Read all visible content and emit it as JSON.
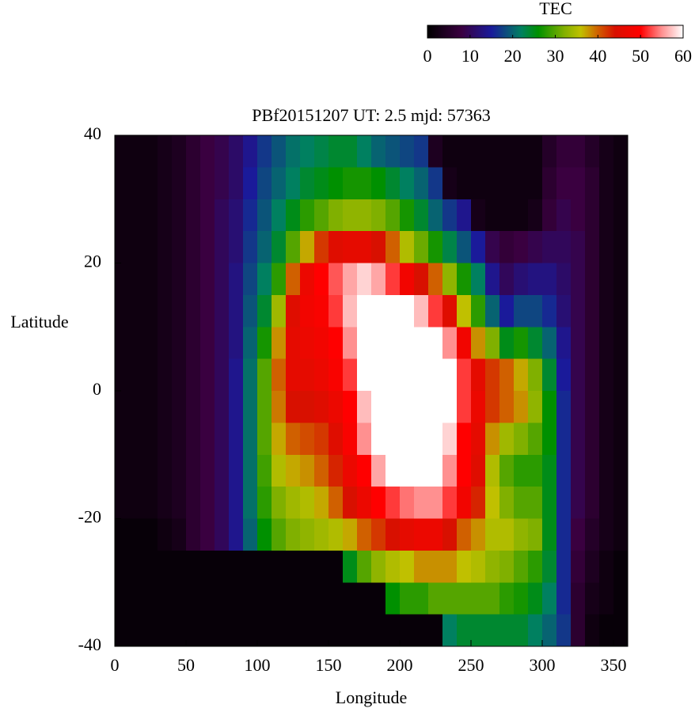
{
  "chart_data": {
    "type": "heatmap",
    "title": "PBf20151207  UT: 2.5  mjd: 57363",
    "xlabel": "Longitude",
    "ylabel": "Latitude",
    "xlim": [
      0,
      360
    ],
    "ylim": [
      -40,
      40
    ],
    "xticks": [
      0,
      50,
      100,
      150,
      200,
      250,
      300,
      350
    ],
    "yticks": [
      -40,
      -20,
      0,
      20,
      40
    ],
    "x": [
      5,
      15,
      25,
      35,
      45,
      55,
      65,
      75,
      85,
      95,
      105,
      115,
      125,
      135,
      145,
      155,
      165,
      175,
      185,
      195,
      205,
      215,
      225,
      235,
      245,
      255,
      265,
      275,
      285,
      295,
      305,
      315,
      325,
      335,
      345,
      355
    ],
    "y": [
      37.5,
      32.5,
      27.5,
      22.5,
      17.5,
      12.5,
      7.5,
      2.5,
      -2.5,
      -7.5,
      -12.5,
      -17.5,
      -22.5,
      -27.5,
      -32.5,
      -37.5
    ],
    "z": [
      [
        2,
        2,
        2,
        3,
        4,
        6,
        8,
        9,
        11,
        14,
        17,
        19,
        21,
        22,
        23,
        24,
        24,
        22,
        20,
        19,
        18,
        17,
        4,
        2,
        2,
        2,
        2,
        2,
        2,
        2,
        5,
        7,
        7,
        5,
        3,
        2
      ],
      [
        2,
        2,
        2,
        3,
        4,
        6,
        8,
        9,
        11,
        15,
        18,
        20,
        22,
        24,
        25,
        26,
        27,
        27,
        26,
        24,
        22,
        20,
        17,
        3,
        2,
        2,
        2,
        2,
        2,
        2,
        6,
        8,
        8,
        6,
        3,
        2
      ],
      [
        2,
        2,
        2,
        3,
        4,
        6,
        8,
        10,
        12,
        16,
        19,
        22,
        25,
        28,
        30,
        32,
        33,
        33,
        32,
        30,
        27,
        24,
        20,
        17,
        14,
        3,
        2,
        2,
        2,
        3,
        7,
        9,
        8,
        6,
        3,
        2
      ],
      [
        2,
        2,
        2,
        3,
        4,
        6,
        8,
        10,
        12,
        17,
        20,
        24,
        30,
        37,
        42,
        45,
        46,
        46,
        44,
        40,
        35,
        31,
        27,
        23,
        19,
        15,
        9,
        7,
        8,
        9,
        10,
        10,
        9,
        6,
        3,
        2
      ],
      [
        2,
        2,
        2,
        3,
        4,
        6,
        8,
        10,
        13,
        18,
        22,
        28,
        40,
        47,
        50,
        53,
        56,
        58,
        56,
        52,
        48,
        44,
        40,
        33,
        27,
        22,
        14,
        10,
        12,
        13,
        13,
        11,
        9,
        6,
        3,
        2
      ],
      [
        2,
        2,
        2,
        3,
        4,
        6,
        8,
        10,
        13,
        19,
        24,
        34,
        45,
        48,
        49,
        52,
        57,
        60,
        60,
        60,
        60,
        57,
        52,
        45,
        36,
        28,
        20,
        15,
        18,
        18,
        16,
        12,
        9,
        6,
        3,
        2
      ],
      [
        2,
        2,
        2,
        3,
        4,
        6,
        8,
        10,
        13,
        20,
        27,
        38,
        46,
        47,
        48,
        50,
        55,
        60,
        60,
        60,
        60,
        60,
        60,
        55,
        48,
        38,
        32,
        25,
        27,
        24,
        20,
        14,
        9,
        6,
        3,
        2
      ],
      [
        2,
        2,
        2,
        3,
        4,
        6,
        8,
        10,
        14,
        21,
        30,
        40,
        46,
        46,
        47,
        49,
        52,
        60,
        60,
        60,
        60,
        60,
        60,
        60,
        52,
        46,
        42,
        40,
        37,
        32,
        24,
        15,
        9,
        6,
        3,
        2
      ],
      [
        2,
        2,
        2,
        3,
        4,
        6,
        8,
        10,
        14,
        21,
        30,
        39,
        44,
        44,
        45,
        47,
        50,
        57,
        60,
        60,
        60,
        60,
        60,
        60,
        52,
        47,
        42,
        40,
        38,
        33,
        26,
        16,
        9,
        6,
        3,
        2
      ],
      [
        2,
        2,
        2,
        3,
        4,
        6,
        8,
        10,
        14,
        21,
        30,
        37,
        40,
        41,
        42,
        45,
        49,
        55,
        60,
        60,
        60,
        60,
        60,
        58,
        50,
        46,
        38,
        34,
        32,
        30,
        26,
        16,
        9,
        6,
        3,
        2
      ],
      [
        2,
        2,
        2,
        3,
        4,
        6,
        8,
        10,
        14,
        21,
        29,
        35,
        37,
        38,
        40,
        43,
        47,
        50,
        56,
        60,
        60,
        60,
        60,
        55,
        50,
        45,
        35,
        30,
        28,
        28,
        25,
        16,
        9,
        6,
        3,
        2
      ],
      [
        2,
        2,
        2,
        3,
        4,
        6,
        8,
        10,
        14,
        21,
        28,
        32,
        34,
        35,
        37,
        40,
        44,
        47,
        50,
        52,
        54,
        55,
        55,
        52,
        48,
        43,
        36,
        32,
        30,
        30,
        25,
        16,
        9,
        6,
        3,
        2
      ],
      [
        1,
        1,
        1,
        2,
        3,
        6,
        8,
        10,
        14,
        20,
        26,
        30,
        32,
        33,
        34,
        35,
        37,
        40,
        42,
        44,
        46,
        47,
        47,
        44,
        40,
        38,
        35,
        35,
        33,
        32,
        25,
        16,
        8,
        5,
        3,
        2
      ],
      [
        1,
        1,
        1,
        1,
        1,
        1,
        1,
        1,
        1,
        1,
        1,
        1,
        1,
        1,
        1,
        1,
        25,
        30,
        33,
        35,
        36,
        38,
        38,
        38,
        36,
        35,
        33,
        32,
        30,
        28,
        24,
        16,
        7,
        4,
        2,
        1
      ],
      [
        1,
        1,
        1,
        1,
        1,
        1,
        1,
        1,
        1,
        1,
        1,
        1,
        1,
        1,
        1,
        1,
        1,
        1,
        1,
        26,
        28,
        28,
        30,
        30,
        30,
        30,
        30,
        28,
        27,
        25,
        22,
        16,
        6,
        3,
        2,
        1
      ],
      [
        1,
        1,
        1,
        1,
        1,
        1,
        1,
        1,
        1,
        1,
        1,
        1,
        1,
        1,
        1,
        1,
        1,
        1,
        1,
        1,
        1,
        1,
        1,
        22,
        24,
        24,
        24,
        24,
        24,
        22,
        20,
        17,
        6,
        2,
        1,
        1
      ]
    ],
    "colorbar": {
      "label": "TEC",
      "lim": [
        0,
        60
      ],
      "ticks": [
        0,
        10,
        20,
        30,
        40,
        50,
        60
      ],
      "colormap": [
        {
          "value": 0,
          "color": "#000000"
        },
        {
          "value": 8,
          "color": "#3a0040"
        },
        {
          "value": 15,
          "color": "#1a1a9a"
        },
        {
          "value": 22,
          "color": "#008060"
        },
        {
          "value": 26,
          "color": "#009000"
        },
        {
          "value": 32,
          "color": "#80b000"
        },
        {
          "value": 36,
          "color": "#c0c000"
        },
        {
          "value": 40,
          "color": "#d06000"
        },
        {
          "value": 44,
          "color": "#d81000"
        },
        {
          "value": 50,
          "color": "#ff0000"
        },
        {
          "value": 55,
          "color": "#ff9090"
        },
        {
          "value": 60,
          "color": "#ffffff"
        }
      ]
    }
  }
}
